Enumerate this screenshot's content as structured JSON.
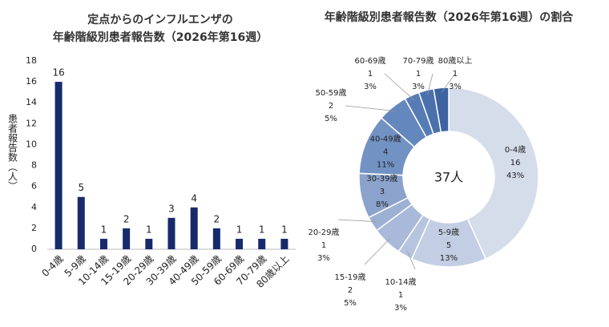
{
  "chart_data": [
    {
      "type": "bar",
      "title": [
        "定点からのインフルエンザの",
        "年齢階級別患者報告数（2026年第16週）"
      ],
      "y_label": "患者報告数（人）",
      "categories": [
        "0-4歳",
        "5-9歳",
        "10-14歳",
        "15-19歳",
        "20-29歳",
        "30-39歳",
        "40-49歳",
        "50-59歳",
        "60-69歳",
        "70-79歳",
        "80歳以上"
      ],
      "values": [
        16,
        5,
        1,
        2,
        1,
        3,
        4,
        2,
        1,
        1,
        1
      ],
      "color": "#172a6b",
      "ylim": [
        0,
        18
      ],
      "yticks": [
        0,
        2,
        4,
        6,
        8,
        10,
        12,
        14,
        16,
        18
      ],
      "grid": false
    },
    {
      "type": "donut",
      "title": "年齢階級別患者報告数（2026年第16週）の割合",
      "center_label": "37人",
      "categories": [
        "0-4歳",
        "5-9歳",
        "10-14歳",
        "15-19歳",
        "20-29歳",
        "30-39歳",
        "40-49歳",
        "50-59歳",
        "60-69歳",
        "70-79歳",
        "80歳以上"
      ],
      "values": [
        16,
        5,
        1,
        2,
        1,
        3,
        4,
        2,
        1,
        1,
        1
      ],
      "percent_labels": [
        "43%",
        "13%",
        "3%",
        "5%",
        "3%",
        "8%",
        "11%",
        "5%",
        "3%",
        "3%",
        "3%"
      ],
      "colors": [
        "#d5dcea",
        "#c3cee4",
        "#b6c4df",
        "#a9b9d9",
        "#9cb0d4",
        "#8aa2cc",
        "#7292c4",
        "#6487be",
        "#567cb6",
        "#4a71ac",
        "#3d63a0"
      ]
    }
  ]
}
